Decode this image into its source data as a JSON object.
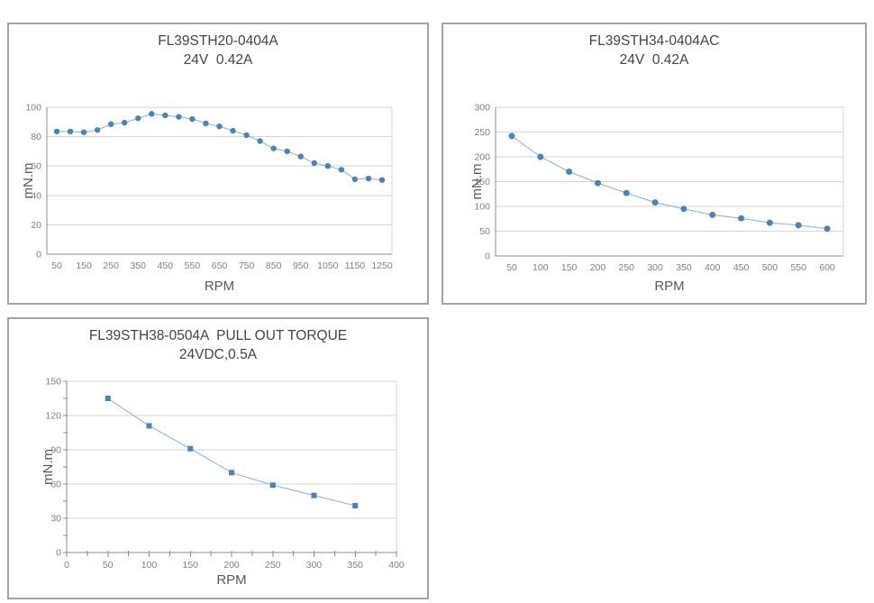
{
  "colors": {
    "marker": "#4a82bc",
    "line": "#8aaed6",
    "grid": "#d6d6d6",
    "axis": "#8c8c8c",
    "tick_text": "#7f7f7f",
    "label_text": "#595959",
    "title_text": "#444444",
    "panel_border": "#a3a3a3",
    "background": "#ffffff"
  },
  "chart_data": [
    {
      "type": "line",
      "title": "FL39STH20-0404A",
      "subtitle": "24V  0.42A",
      "xlabel": "RPM",
      "ylabel": "mN.m",
      "legend": "none",
      "grid": "horizontal",
      "marker": "circle",
      "x": [
        50,
        100,
        150,
        200,
        250,
        300,
        350,
        400,
        450,
        500,
        550,
        600,
        650,
        700,
        750,
        800,
        850,
        900,
        950,
        1000,
        1050,
        1100,
        1150,
        1200,
        1250
      ],
      "y": [
        83.5,
        83.5,
        83,
        84.5,
        88.5,
        89.5,
        92.5,
        95.5,
        94.5,
        93.5,
        92,
        89,
        87,
        84,
        81,
        77,
        72,
        70,
        66.5,
        62,
        60,
        57.5,
        51,
        51.5,
        50.5
      ],
      "x_tick_labels": [
        50,
        150,
        250,
        350,
        450,
        550,
        650,
        750,
        850,
        950,
        1050,
        1150,
        1250
      ],
      "y_ticks": [
        0,
        20,
        40,
        60,
        80,
        100
      ],
      "ylim": [
        0,
        100
      ]
    },
    {
      "type": "line",
      "title": "FL39STH34-0404AC",
      "subtitle": "24V  0.42A",
      "xlabel": "RPM",
      "ylabel": "mN.m",
      "legend": "none",
      "grid": "horizontal",
      "marker": "circle",
      "x": [
        50,
        100,
        150,
        200,
        250,
        300,
        350,
        400,
        450,
        500,
        550,
        600
      ],
      "y": [
        242,
        200,
        170,
        147,
        127,
        108,
        95,
        83,
        76,
        67,
        62,
        55
      ],
      "x_tick_labels": [
        50,
        100,
        150,
        200,
        250,
        300,
        350,
        400,
        450,
        500,
        550,
        600
      ],
      "y_ticks": [
        0,
        50,
        100,
        150,
        200,
        250,
        300
      ],
      "ylim": [
        0,
        300
      ]
    },
    {
      "type": "line",
      "title": "FL39STH38-0504A  PULL OUT TORQUE",
      "subtitle": "24VDC,0.5A",
      "xlabel": "RPM",
      "ylabel": "mN.m",
      "legend": "none",
      "grid": "horizontal",
      "marker": "square",
      "x": [
        50,
        100,
        150,
        200,
        250,
        300,
        350
      ],
      "y": [
        135,
        111,
        91,
        70,
        59,
        50,
        41
      ],
      "x_tick_labels": [
        0,
        50,
        100,
        150,
        200,
        250,
        300,
        350,
        400
      ],
      "x_minor_tick_step": 25,
      "y_minor_tick_step": 15,
      "y_ticks": [
        0,
        30,
        60,
        90,
        120,
        150
      ],
      "xlim": [
        0,
        400
      ],
      "ylim": [
        0,
        150
      ]
    }
  ]
}
